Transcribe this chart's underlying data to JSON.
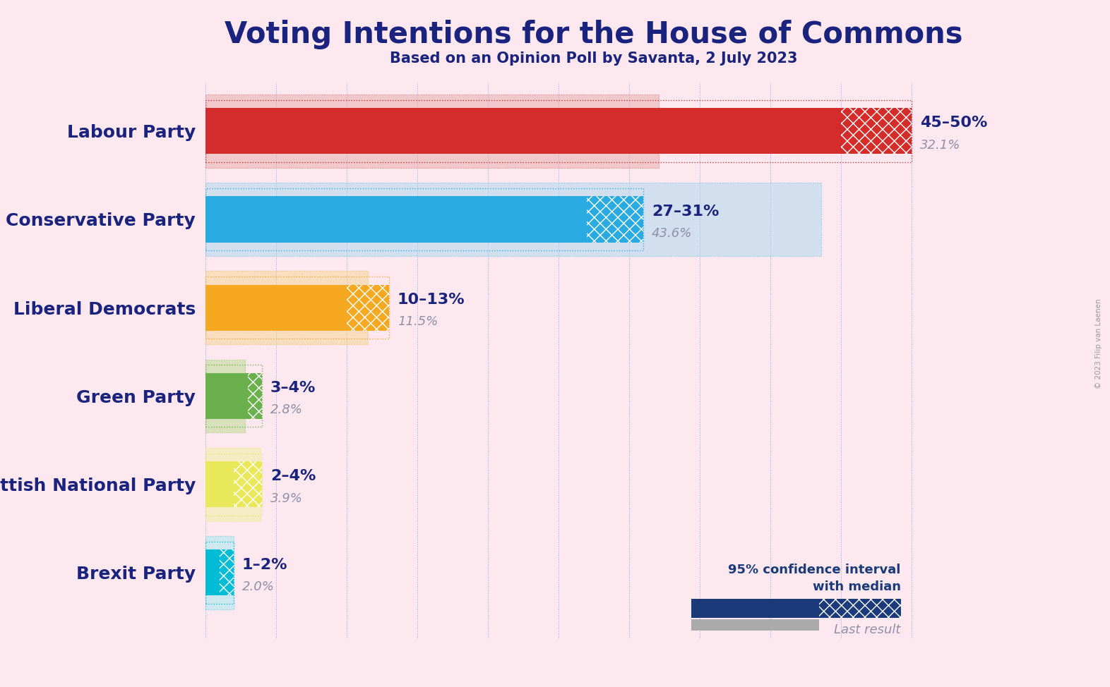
{
  "title": "Voting Intentions for the House of Commons",
  "subtitle": "Based on an Opinion Poll by Savanta, 2 July 2023",
  "background_color": "#fce8ee",
  "title_color": "#1a237e",
  "subtitle_color": "#1a237e",
  "parties": [
    "Labour Party",
    "Conservative Party",
    "Liberal Democrats",
    "Green Party",
    "Scottish National Party",
    "Brexit Party"
  ],
  "party_colors": [
    "#d42b2b",
    "#29abe2",
    "#f5a820",
    "#6ab04c",
    "#e8e85a",
    "#00bcd4"
  ],
  "party_colors_light": [
    "#e8aaaa",
    "#a8d8ef",
    "#f5d490",
    "#b8d98b",
    "#f0f0a0",
    "#a0e8f0"
  ],
  "ci_low": [
    45,
    27,
    10,
    3,
    2,
    1
  ],
  "ci_high": [
    50,
    31,
    13,
    4,
    4,
    2
  ],
  "last_result": [
    32.1,
    43.6,
    11.5,
    2.8,
    3.9,
    2.0
  ],
  "ci_labels": [
    "45–50%",
    "27–31%",
    "10–13%",
    "3–4%",
    "2–4%",
    "1–2%"
  ],
  "last_labels": [
    "32.1%",
    "43.6%",
    "11.5%",
    "2.8%",
    "3.9%",
    "2.0%"
  ],
  "label_color": "#1a237e",
  "last_label_color": "#9090aa",
  "legend_ci_color": "#1a3a7a",
  "legend_last_color": "#9090aa",
  "xlim": 55,
  "copyright": "© 2023 Filip van Laenen"
}
